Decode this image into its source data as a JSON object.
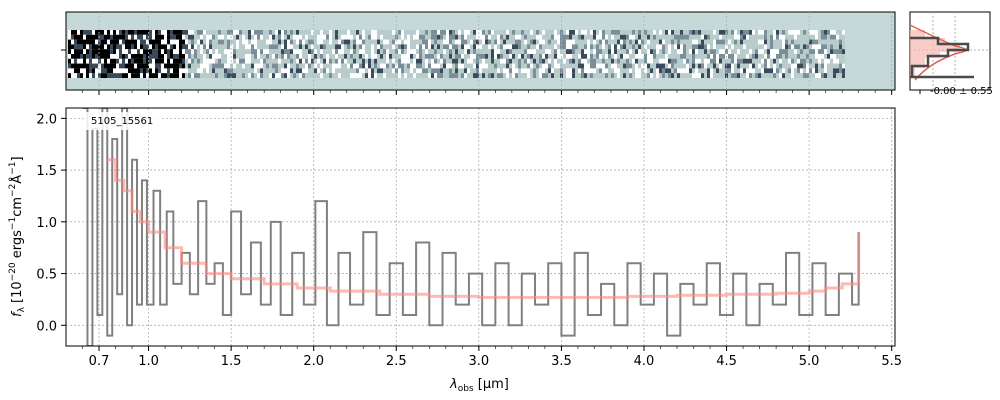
{
  "chart_data": {
    "type": "line",
    "id_label": "5105_15561",
    "xlabel": "λobs [μm]",
    "xlabel_main": "λ",
    "xlabel_sub": "obs",
    "xlabel_unit": " [μm]",
    "ylabel": "fλ [10^-20 ergs^-1 cm^-2 Å^-1]",
    "ylabel_parts": {
      "f": "f",
      "f_sub": "λ",
      "a": " [10",
      "exp1": "−20",
      "b": " ergs",
      "exp2": "−1",
      "c": "cm",
      "exp3": "−2",
      "d": "Å",
      "exp4": "−1",
      "e": "]"
    },
    "x_ticks": [
      "0.7",
      "1.0",
      "1.5",
      "2.0",
      "2.5",
      "3.0",
      "3.5",
      "4.0",
      "4.5",
      "5.0",
      "5.5"
    ],
    "y_ticks": [
      "0.0",
      "0.5",
      "1.0",
      "1.5",
      "2.0"
    ],
    "ylim": [
      -0.2,
      2.1
    ],
    "grid": true,
    "series": [
      {
        "color": "#808080",
        "x": [
          0.6,
          0.63,
          0.66,
          0.69,
          0.72,
          0.75,
          0.78,
          0.81,
          0.84,
          0.87,
          0.9,
          0.93,
          0.96,
          0.99,
          1.03,
          1.07,
          1.11,
          1.15,
          1.2,
          1.25,
          1.3,
          1.35,
          1.4,
          1.45,
          1.5,
          1.56,
          1.62,
          1.68,
          1.74,
          1.8,
          1.87,
          1.94,
          2.01,
          2.08,
          2.15,
          2.22,
          2.3,
          2.38,
          2.46,
          2.54,
          2.62,
          2.7,
          2.78,
          2.86,
          2.94,
          3.02,
          3.1,
          3.18,
          3.26,
          3.34,
          3.42,
          3.5,
          3.58,
          3.66,
          3.74,
          3.82,
          3.9,
          3.98,
          4.06,
          4.14,
          4.22,
          4.3,
          4.38,
          4.46,
          4.54,
          4.62,
          4.7,
          4.78,
          4.86,
          4.94,
          5.02,
          5.1,
          5.18,
          5.26,
          5.3
        ],
        "y": [
          2.1,
          -0.2,
          1.9,
          0.1,
          2.1,
          -0.1,
          1.8,
          0.3,
          2.1,
          0.0,
          1.6,
          0.2,
          1.4,
          0.2,
          1.3,
          0.2,
          1.1,
          0.4,
          0.7,
          0.3,
          1.2,
          0.4,
          0.6,
          0.1,
          1.1,
          0.3,
          0.8,
          0.2,
          1.0,
          0.1,
          0.7,
          0.2,
          1.2,
          0.0,
          0.7,
          0.2,
          0.9,
          0.1,
          0.6,
          0.1,
          0.8,
          0.0,
          0.7,
          0.2,
          0.5,
          0.0,
          0.6,
          0.0,
          0.5,
          0.2,
          0.6,
          -0.1,
          0.7,
          0.1,
          0.4,
          0.0,
          0.6,
          0.2,
          0.5,
          -0.1,
          0.4,
          0.2,
          0.6,
          0.1,
          0.5,
          0.0,
          0.4,
          0.2,
          0.7,
          0.1,
          0.6,
          0.1,
          0.5,
          0.2,
          0.9
        ]
      },
      {
        "color": "#ff8a80",
        "x": [
          0.75,
          0.8,
          0.85,
          0.9,
          0.95,
          1.0,
          1.1,
          1.2,
          1.35,
          1.5,
          1.7,
          1.9,
          2.1,
          2.4,
          2.7,
          3.0,
          3.3,
          3.6,
          3.9,
          4.2,
          4.5,
          4.8,
          5.0,
          5.1,
          5.2,
          5.3
        ],
        "y": [
          1.6,
          1.4,
          1.3,
          1.1,
          1.0,
          0.9,
          0.75,
          0.6,
          0.5,
          0.45,
          0.4,
          0.36,
          0.33,
          0.3,
          0.28,
          0.27,
          0.27,
          0.27,
          0.28,
          0.29,
          0.3,
          0.31,
          0.33,
          0.36,
          0.4,
          0.9
        ]
      }
    ],
    "histogram_panel": {
      "annotation": "-0.00 ± 0.55"
    }
  },
  "colors": {
    "axis": "#000000",
    "grid": "#b0b0b0",
    "spectrum_data": "#808080",
    "model": "#ff8a80",
    "twod_background": "#c5d9d9",
    "hist_dark": "#4a4a4a",
    "hist_red": "#e06050"
  }
}
